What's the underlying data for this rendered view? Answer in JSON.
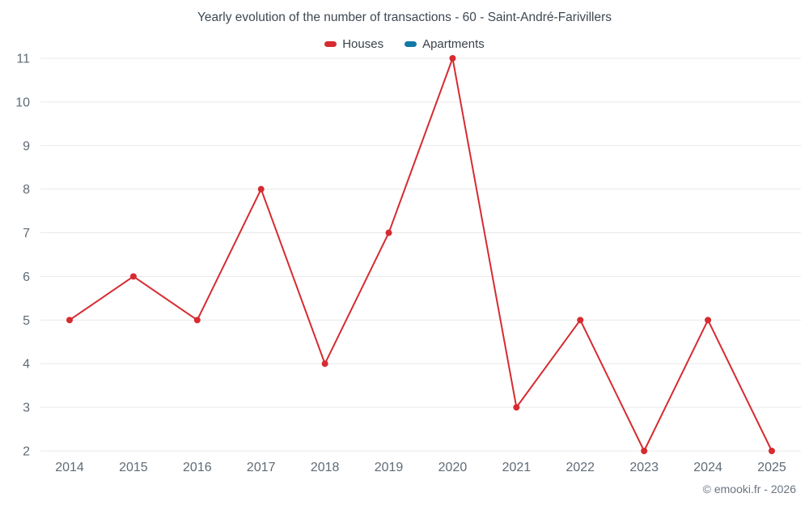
{
  "title": "Yearly evolution of the number of transactions - 60 - Saint-André-Farivillers",
  "footer_credit": "© emooki.fr - 2026",
  "legend": [
    {
      "label": "Houses",
      "color": "#d62b30"
    },
    {
      "label": "Apartments",
      "color": "#1279a5"
    }
  ],
  "colors": {
    "houses_series": "#d62b30",
    "apartments_series": "#1279a5",
    "gridline": "#e9e9e9",
    "tick_text": "#5f6b76",
    "title_text": "#3e4852"
  },
  "chart_data": {
    "type": "line",
    "title": "Yearly evolution of the number of transactions - 60 - Saint-André-Farivillers",
    "categories": [
      "2014",
      "2015",
      "2016",
      "2017",
      "2018",
      "2019",
      "2020",
      "2021",
      "2022",
      "2023",
      "2024",
      "2025"
    ],
    "series": [
      {
        "name": "Houses",
        "color": "#d62b30",
        "values": [
          5,
          6,
          5,
          8,
          4,
          7,
          11,
          3,
          5,
          2,
          5,
          2
        ]
      },
      {
        "name": "Apartments",
        "color": "#1279a5",
        "values": []
      }
    ],
    "xlabel": "",
    "ylabel": "",
    "ylim": [
      2,
      11
    ],
    "ytick_step": 1,
    "grid": "horizontal",
    "legend_position": "top",
    "marker_radius": 4
  }
}
